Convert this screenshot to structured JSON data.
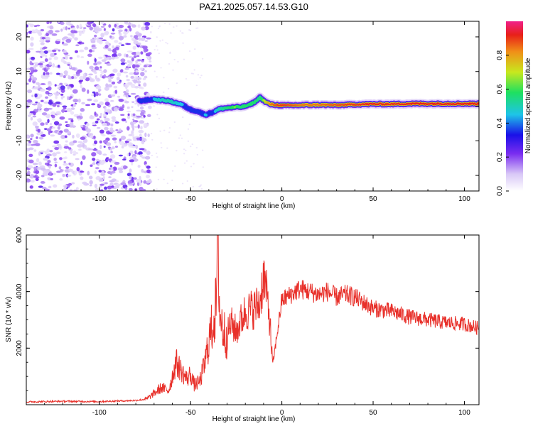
{
  "title": "PAZ1.2025.057.14.53.G10",
  "colormap": [
    {
      "stop": 0.0,
      "color": "#ffffff"
    },
    {
      "stop": 0.1,
      "color": "#d9c8f7"
    },
    {
      "stop": 0.22,
      "color": "#7a2df0"
    },
    {
      "stop": 0.33,
      "color": "#1a10e8"
    },
    {
      "stop": 0.45,
      "color": "#1ec4e8"
    },
    {
      "stop": 0.58,
      "color": "#1ee060"
    },
    {
      "stop": 0.7,
      "color": "#c8e81e"
    },
    {
      "stop": 0.82,
      "color": "#f09018"
    },
    {
      "stop": 0.92,
      "color": "#e82018"
    },
    {
      "stop": 1.0,
      "color": "#f0208a"
    }
  ],
  "chart_data": [
    {
      "type": "heatmap",
      "title": "PAZ1.2025.057.14.53.G10",
      "xlabel": "Height of straight line (km)",
      "ylabel": "Frequency (Hz)",
      "xlim": [
        -140,
        108
      ],
      "ylim": [
        -24.5,
        24.5
      ],
      "xticks": [
        -100,
        -50,
        0,
        50,
        100
      ],
      "yticks": [
        -20,
        -10,
        0,
        10,
        20
      ],
      "colorbar": {
        "label": "Normalized spectral amplitude",
        "range": [
          0,
          1
        ],
        "ticks": [
          0.0,
          0.2,
          0.4,
          0.6,
          0.8
        ]
      },
      "ridge": {
        "x": [
          -78,
          -70,
          -62,
          -55,
          -50,
          -46,
          -42,
          -38,
          -34,
          -30,
          -26,
          -22,
          -18,
          -14,
          -12,
          -9,
          -6,
          -2,
          2,
          10,
          20,
          30,
          40,
          50,
          60,
          70,
          80,
          90,
          100,
          108
        ],
        "frequency": [
          1.5,
          2.0,
          1.5,
          0.5,
          -1.0,
          -1.5,
          -2.5,
          -1.8,
          -0.8,
          -0.5,
          -0.3,
          -0.2,
          0.3,
          1.5,
          2.5,
          1.2,
          0.5,
          0.3,
          0.2,
          0.3,
          0.4,
          0.3,
          0.5,
          0.6,
          0.6,
          0.7,
          0.7,
          0.7,
          0.7,
          0.7
        ],
        "amplitude": [
          0.3,
          0.45,
          0.5,
          0.45,
          0.42,
          0.4,
          0.45,
          0.42,
          0.5,
          0.6,
          0.65,
          0.6,
          0.62,
          0.6,
          0.55,
          0.75,
          0.85,
          0.9,
          0.9,
          0.85,
          0.85,
          0.88,
          0.9,
          0.92,
          0.9,
          0.92,
          0.92,
          0.92,
          0.92,
          0.92
        ]
      },
      "noise_region": {
        "x_from": -140,
        "x_to": -72,
        "typical_amplitude": 0.2
      }
    },
    {
      "type": "line",
      "xlabel": "Height of straight line (km)",
      "ylabel": "SNR (10 * v/v)",
      "xlim": [
        -140,
        108
      ],
      "ylim": [
        0,
        6000
      ],
      "xticks": [
        -100,
        -50,
        0,
        50,
        100
      ],
      "yticks": [
        2000,
        4000,
        6000
      ],
      "color": "#e8302a",
      "x": [
        -140,
        -120,
        -100,
        -80,
        -74,
        -70,
        -66,
        -62,
        -58,
        -55,
        -52,
        -50,
        -48,
        -45,
        -42,
        -40,
        -38,
        -36,
        -35,
        -34,
        -32,
        -30,
        -28,
        -25,
        -20,
        -15,
        -12,
        -10,
        -7,
        -5,
        0,
        5,
        10,
        15,
        20,
        25,
        30,
        35,
        40,
        45,
        50,
        60,
        70,
        80,
        90,
        100,
        108
      ],
      "y": [
        100,
        120,
        110,
        150,
        200,
        400,
        600,
        500,
        1500,
        1200,
        900,
        1100,
        700,
        800,
        1500,
        2300,
        2800,
        3500,
        6000,
        3200,
        2600,
        2400,
        2900,
        2600,
        3300,
        3400,
        3600,
        4600,
        3300,
        1400,
        3700,
        3900,
        4100,
        4000,
        3900,
        4000,
        3800,
        3900,
        3800,
        3600,
        3400,
        3300,
        3100,
        3000,
        2900,
        2850,
        2700
      ]
    }
  ]
}
